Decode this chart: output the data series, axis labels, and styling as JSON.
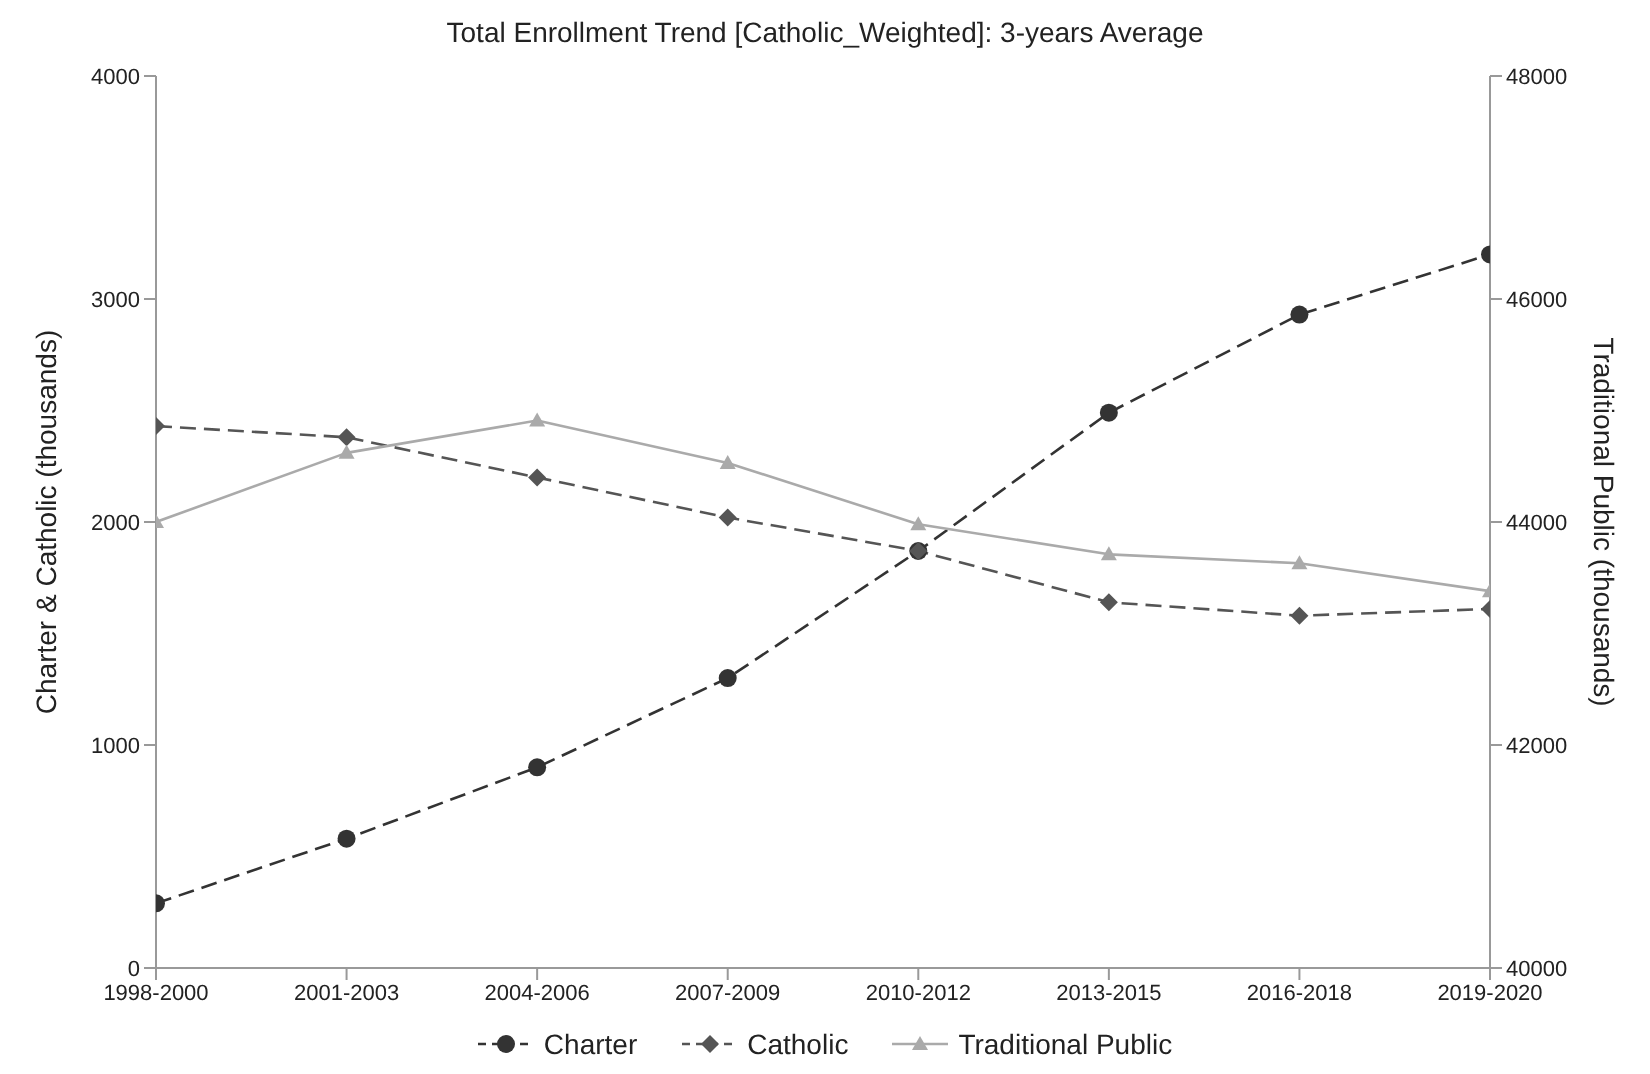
{
  "chart_data": {
    "type": "line",
    "title": "Total Enrollment Trend [Catholic_Weighted]: 3-years Average",
    "ylabel": "Charter & Catholic (thousands)",
    "y2label": "Traditional Public (thousands)",
    "categories": [
      "1998-2000",
      "2001-2003",
      "2004-2006",
      "2007-2009",
      "2010-2012",
      "2013-2015",
      "2016-2018",
      "2019-2020"
    ],
    "series": [
      {
        "name": "Charter",
        "color": "#333333",
        "marker": "circle",
        "line_style": "dashed",
        "values": [
          290,
          580,
          900,
          1300,
          1870,
          2490,
          2930,
          3200
        ]
      },
      {
        "name": "Catholic",
        "color": "#555555",
        "marker": "diamond",
        "line_style": "dashed",
        "values": [
          2430,
          2380,
          2200,
          2020,
          1870,
          1640,
          1580,
          1610
        ]
      },
      {
        "name": "Traditional Public",
        "color": "#aaaaaa",
        "marker": "triangle",
        "line_style": "solid",
        "axis": "y2",
        "values": [
          44000,
          44620,
          44910,
          44530,
          43980,
          43710,
          43630,
          43380
        ]
      }
    ],
    "ylim": [
      0,
      4000
    ],
    "yticks": [
      0,
      1000,
      2000,
      3000,
      4000
    ],
    "y2lim": [
      40000,
      48000
    ],
    "y2ticks": [
      40000,
      42000,
      44000,
      46000,
      48000
    ],
    "grid": false,
    "legend": "bottom"
  }
}
